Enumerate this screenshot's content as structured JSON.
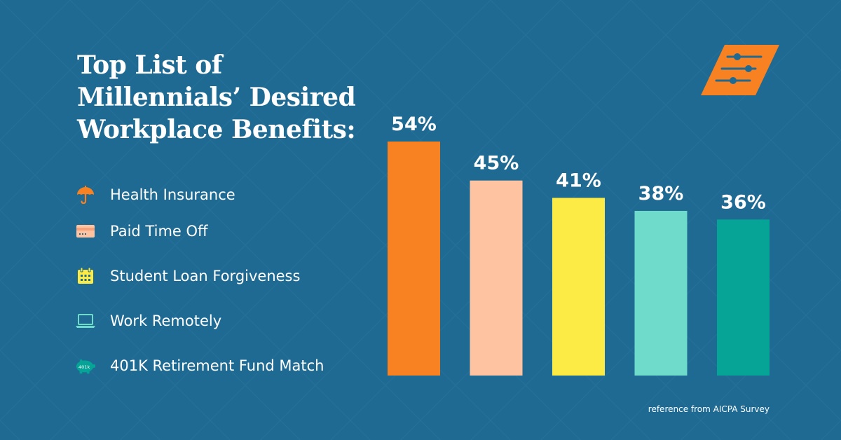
{
  "title_lines": [
    "Top List of",
    "Millennials’ Desired",
    "Workplace Benefits:"
  ],
  "colors": {
    "background": "#1f6a93",
    "health": "#f88122",
    "pto": "#fec3a0",
    "student": "#fdeb45",
    "remote": "#6fdbcb",
    "retirement": "#05a497",
    "logo": "#f88122"
  },
  "legend": [
    {
      "label": "Health Insurance",
      "icon": "umbrella-icon",
      "color": "#f88122"
    },
    {
      "label": "Paid Time Off",
      "icon": "credit-card-icon",
      "color": "#fec3a0"
    },
    {
      "label": "Student Loan Forgiveness",
      "icon": "calendar-icon",
      "color": "#fdeb45"
    },
    {
      "label": "Work Remotely",
      "icon": "laptop-icon",
      "color": "#6fdbcb"
    },
    {
      "label": "401K Retirement Fund Match",
      "icon": "piggy-bank-icon",
      "color": "#05a497",
      "icon_text": "401k"
    }
  ],
  "chart_data": {
    "type": "bar",
    "categories": [
      "Health Insurance",
      "Paid Time Off",
      "Student Loan Forgiveness",
      "Work Remotely",
      "401K Retirement Fund Match"
    ],
    "values": [
      54,
      45,
      41,
      38,
      36
    ],
    "value_labels": [
      "54%",
      "45%",
      "41%",
      "38%",
      "36%"
    ],
    "colors": [
      "#f88122",
      "#fec3a0",
      "#fdeb45",
      "#6fdbcb",
      "#05a497"
    ],
    "ylim": [
      0,
      60
    ],
    "grid": false,
    "axes_visible": false
  },
  "source": "reference from AICPA Survey",
  "logo_icon": "sliders-logo-icon"
}
